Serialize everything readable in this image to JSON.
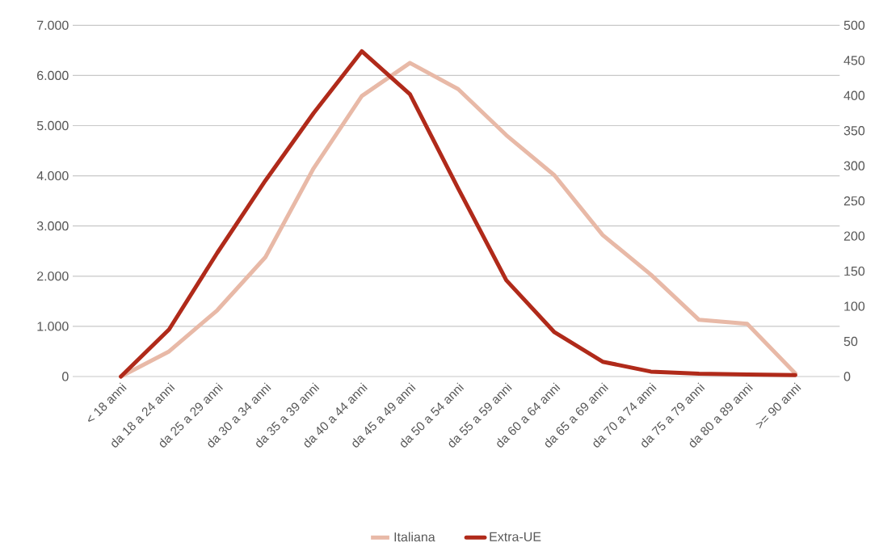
{
  "chart_data": {
    "type": "line",
    "categories": [
      "< 18 anni",
      "da 18 a 24 anni",
      "da 25 a 29 anni",
      "da 30 a 34 anni",
      "da 35 a 39 anni",
      "da 40 a 44 anni",
      "da 45 a 49 anni",
      "da 50 a 54 anni",
      "da 55 a 59 anni",
      "da 60 a 64 anni",
      "da 65 a 69 anni",
      "da 70 a 74 anni",
      "da 75 a 79 anni",
      "da 80 a 89 anni",
      ">= 90 anni"
    ],
    "series": [
      {
        "name": "Italiana",
        "color": "#e8b9a7",
        "values": [
          0,
          500,
          1320,
          2380,
          4150,
          5590,
          6250,
          5730,
          4810,
          4010,
          2820,
          2030,
          1130,
          1050,
          60
        ]
      },
      {
        "name": "Extra-UE",
        "color": "#b02a1a",
        "axis": "y2",
        "values": [
          0,
          67,
          176,
          279,
          375,
          463,
          402,
          268,
          137,
          63,
          21,
          7,
          4,
          3,
          2
        ]
      }
    ],
    "ylim": [
      0,
      7000
    ],
    "yticks": [
      0,
      {
        "value": 1000,
        "label": "1.000"
      },
      {
        "value": 2000,
        "label": "2.000"
      },
      {
        "value": 3000,
        "label": "3.000"
      },
      {
        "value": 4000,
        "label": "4.000"
      },
      {
        "value": 5000,
        "label": "5.000"
      },
      {
        "value": 6000,
        "label": "6.000"
      },
      {
        "value": 7000,
        "label": "7.000"
      }
    ],
    "y2lim": [
      0,
      500
    ],
    "y2ticks": [
      0,
      50,
      100,
      150,
      200,
      250,
      300,
      350,
      400,
      450,
      500
    ],
    "grid": "y",
    "legend": "bottom",
    "marker": "none",
    "line_style": "solid"
  }
}
